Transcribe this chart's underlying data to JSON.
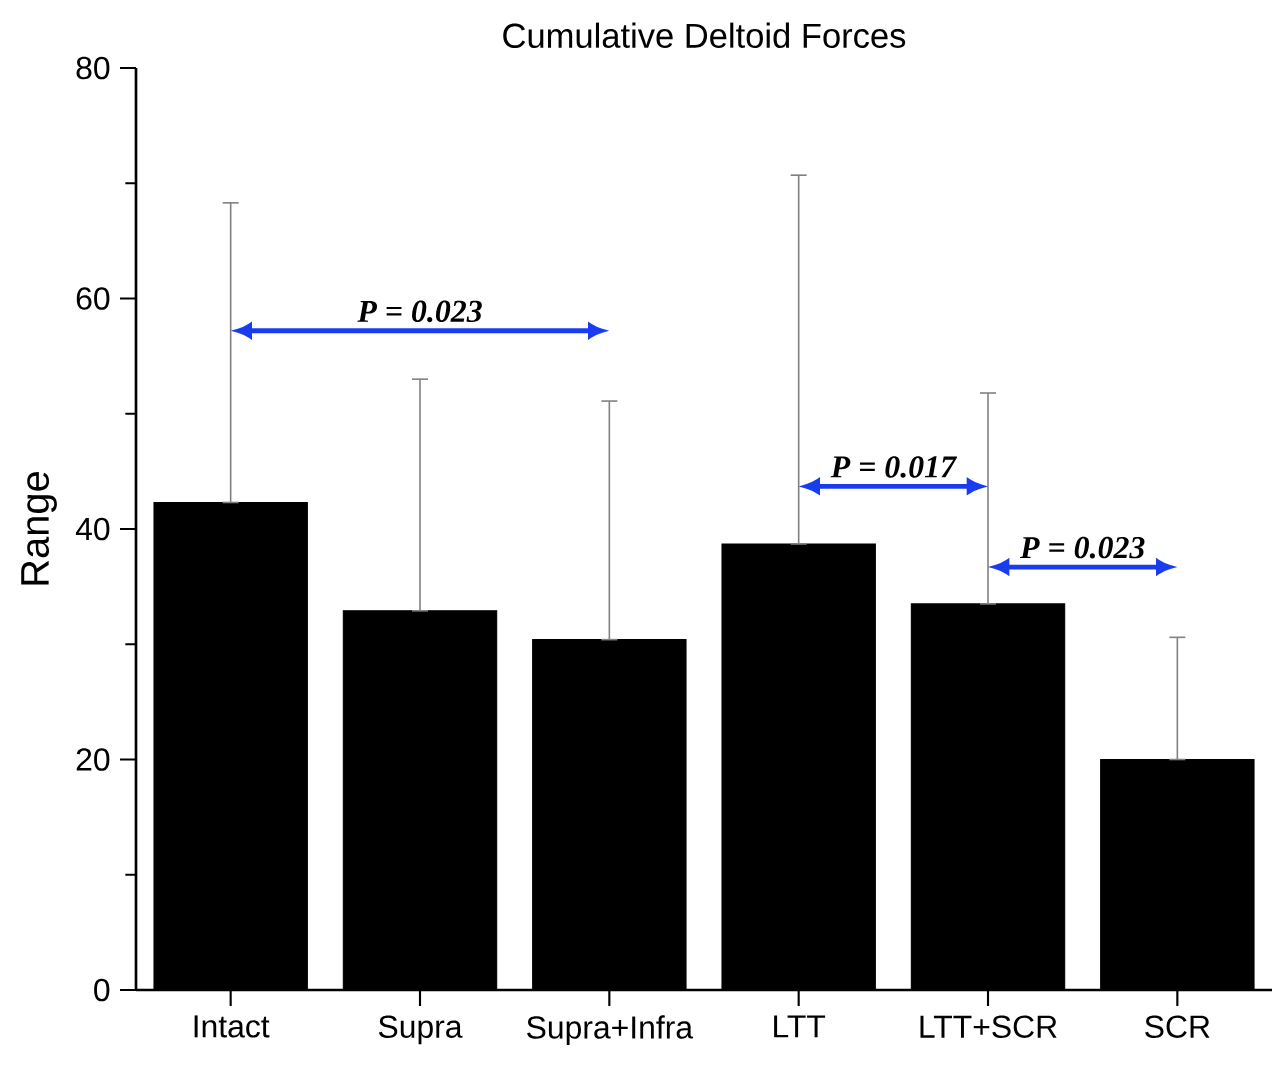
{
  "chart_data": {
    "type": "bar",
    "title": "Cumulative Deltoid Forces",
    "ylabel": "Range",
    "categories": [
      "Intact",
      "Supra",
      "Supra+Infra",
      "LTT",
      "LTT+SCR",
      "SCR"
    ],
    "values": [
      42.3,
      32.9,
      30.4,
      38.7,
      33.5,
      20.0
    ],
    "errors": [
      [
        42.3,
        68.3
      ],
      [
        32.9,
        53.0
      ],
      [
        30.4,
        51.1
      ],
      [
        38.7,
        70.7
      ],
      [
        33.5,
        51.8
      ],
      [
        20.0,
        30.6
      ]
    ],
    "color": "#000000",
    "ylim": [
      0,
      80
    ],
    "yticks": [
      0,
      20,
      40,
      60,
      80
    ],
    "annotations": [
      "P = 0.023",
      "P = 0.017",
      "P = 0.023"
    ]
  }
}
